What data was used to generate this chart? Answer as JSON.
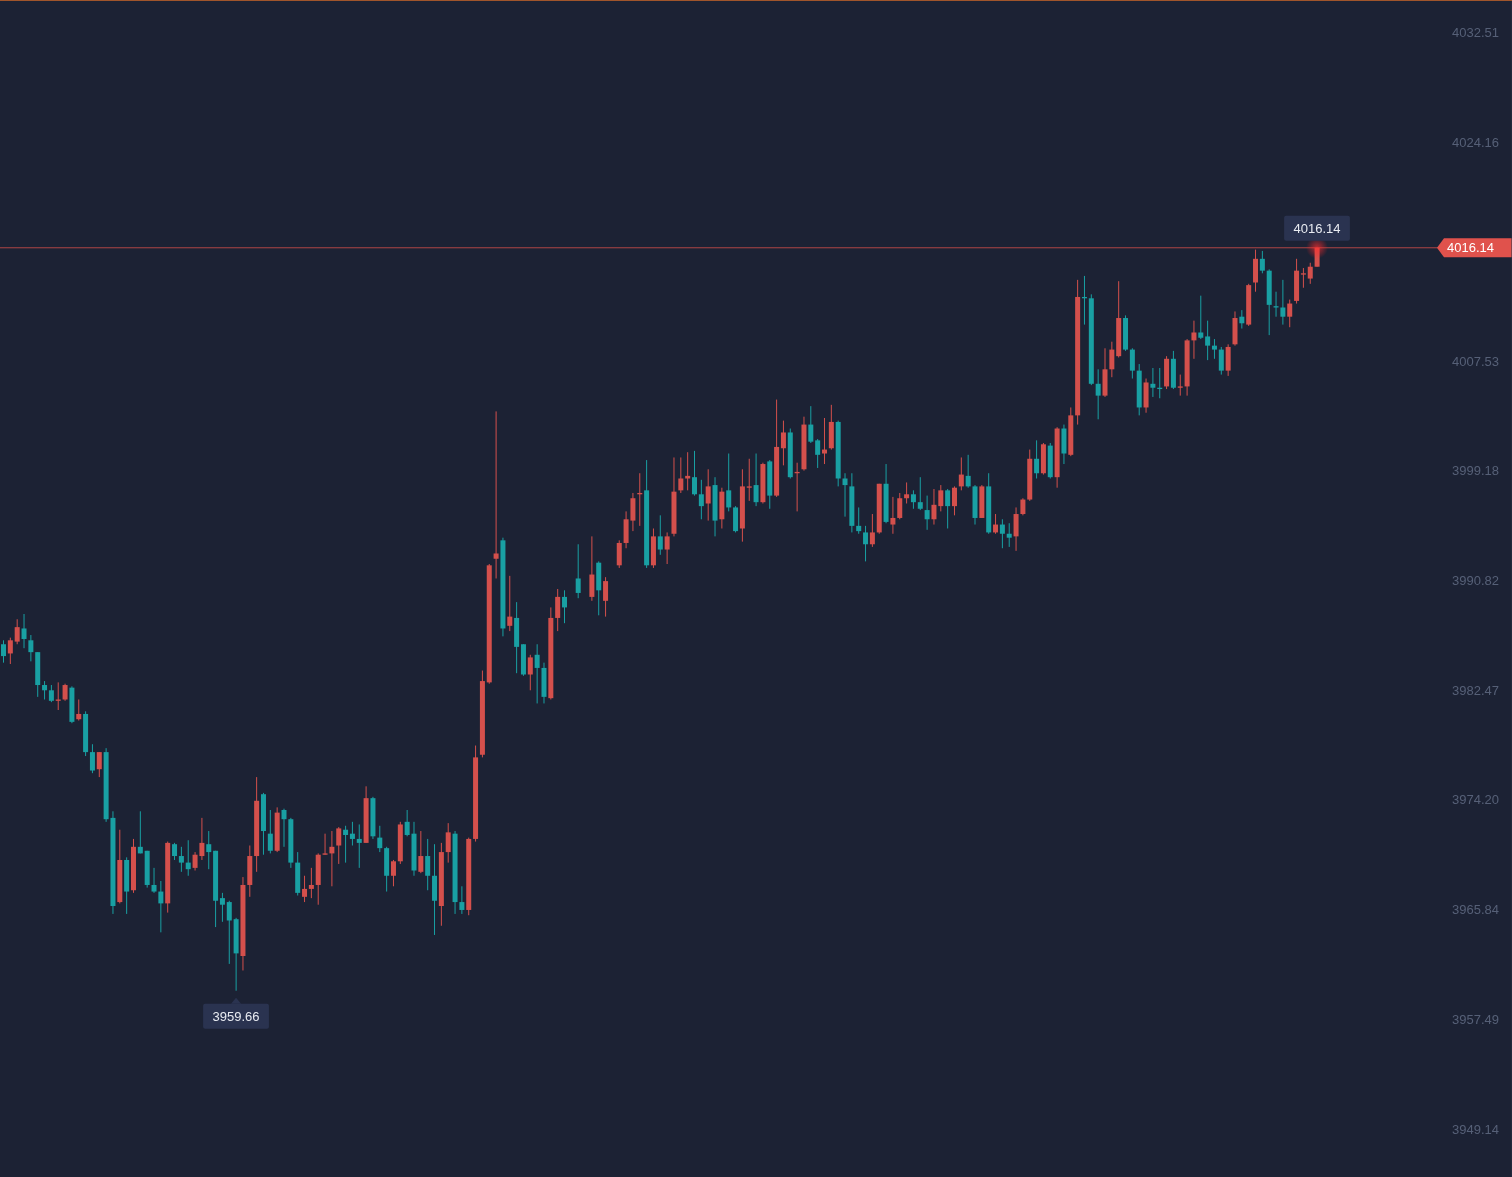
{
  "chart_data": {
    "type": "candlestick",
    "categories": [
      null,
      null,
      null,
      null,
      null,
      null,
      null,
      null,
      null,
      null,
      null,
      null,
      null,
      null,
      null,
      null,
      null,
      null,
      null,
      null,
      null,
      null,
      null,
      null,
      null,
      null,
      null,
      null,
      null,
      null,
      null,
      null,
      null,
      null,
      null,
      null,
      null,
      null,
      null,
      null,
      null,
      null,
      null,
      null,
      null,
      null,
      null,
      null,
      null,
      null,
      null,
      null,
      null,
      null,
      null,
      null,
      null,
      null,
      null,
      null,
      null,
      null,
      null,
      null,
      null,
      null,
      null,
      null,
      null,
      null,
      null,
      null,
      null,
      null,
      null,
      null,
      null,
      null,
      null,
      null,
      null,
      null,
      null,
      null,
      null,
      null,
      null,
      null,
      null,
      null,
      null,
      null,
      null,
      null,
      null,
      null,
      null,
      null,
      null,
      null,
      null,
      null,
      null,
      null,
      null,
      null,
      null,
      null,
      null,
      null,
      null,
      null,
      null,
      null,
      null,
      null,
      null,
      null,
      null,
      null,
      null,
      null,
      null,
      null,
      null,
      null,
      null,
      null,
      null,
      null,
      null,
      null,
      null,
      null,
      null,
      null,
      null,
      null,
      null,
      null,
      null,
      null,
      null,
      null,
      null,
      null,
      null,
      null,
      null,
      null,
      null,
      null,
      null,
      null,
      null,
      null,
      null,
      null,
      null,
      null,
      null,
      null,
      null,
      null,
      null,
      null,
      null,
      null,
      null,
      null,
      null,
      null,
      null,
      null,
      null,
      null,
      null,
      null,
      null,
      null,
      null,
      null,
      null,
      null,
      null,
      null,
      null,
      null,
      null,
      null,
      null,
      null,
      null,
      null,
      null,
      null,
      null,
      null,
      null,
      null,
      null,
      null,
      null,
      null,
      null,
      null,
      null,
      null,
      null,
      null,
      null,
      null,
      null,
      null,
      null,
      null,
      null,
      null,
      null,
      null,
      null
    ],
    "ohlc": [
      [
        3986.0,
        3986.3,
        3984.6,
        3985.1
      ],
      [
        3985.3,
        3986.5,
        3984.5,
        3986.3
      ],
      [
        3986.2,
        3987.9,
        3986.0,
        3987.3
      ],
      [
        3987.2,
        3988.3,
        3985.7,
        3986.4
      ],
      [
        3986.3,
        3986.7,
        3984.7,
        3985.4
      ],
      [
        3985.4,
        3985.4,
        3982.0,
        3982.9
      ],
      [
        3982.9,
        3983.2,
        3981.8,
        3982.5
      ],
      [
        3982.5,
        3982.9,
        3981.6,
        3981.7
      ],
      [
        3981.7,
        3983.1,
        3981.0,
        3981.8
      ],
      [
        3981.8,
        3983.0,
        3981.7,
        3982.9
      ],
      [
        3982.7,
        3982.8,
        3980.0,
        3980.1
      ],
      [
        3980.3,
        3981.8,
        3980.2,
        3980.7
      ],
      [
        3980.7,
        3980.9,
        3977.5,
        3977.8
      ],
      [
        3977.8,
        3978.4,
        3976.2,
        3976.4
      ],
      [
        3976.5,
        3977.8,
        3975.9,
        3977.8
      ],
      [
        3977.8,
        3978.1,
        3972.5,
        3972.7
      ],
      [
        3972.8,
        3973.3,
        3965.5,
        3966.1
      ],
      [
        3966.4,
        3971.9,
        3966.3,
        3969.6
      ],
      [
        3969.6,
        3969.8,
        3965.5,
        3967.2
      ],
      [
        3967.3,
        3971.2,
        3967.1,
        3970.6
      ],
      [
        3970.6,
        3973.3,
        3970.1,
        3970.1
      ],
      [
        3970.3,
        3970.3,
        3967.5,
        3967.7
      ],
      [
        3967.7,
        3969.0,
        3967.1,
        3967.2
      ],
      [
        3967.2,
        3968.0,
        3964.1,
        3966.3
      ],
      [
        3966.3,
        3971.0,
        3965.6,
        3970.9
      ],
      [
        3970.8,
        3970.9,
        3969.6,
        3969.9
      ],
      [
        3969.9,
        3970.6,
        3968.7,
        3969.4
      ],
      [
        3969.4,
        3971.1,
        3968.4,
        3968.9
      ],
      [
        3969.0,
        3970.2,
        3968.8,
        3970.0
      ],
      [
        3969.9,
        3972.8,
        3969.6,
        3970.9
      ],
      [
        3970.8,
        3971.8,
        3968.9,
        3970.2
      ],
      [
        3970.3,
        3970.3,
        3964.5,
        3966.5
      ],
      [
        3966.7,
        3967.1,
        3964.9,
        3966.2
      ],
      [
        3966.4,
        3966.5,
        3961.7,
        3965.0
      ],
      [
        3965.1,
        3965.2,
        3959.66,
        3962.5
      ],
      [
        3962.3,
        3968.3,
        3961.2,
        3967.7
      ],
      [
        3967.7,
        3970.7,
        3966.8,
        3969.9
      ],
      [
        3969.9,
        3975.9,
        3968.7,
        3974.1
      ],
      [
        3974.6,
        3974.7,
        3970.0,
        3971.8
      ],
      [
        3971.6,
        3973.4,
        3970.1,
        3970.3
      ],
      [
        3970.3,
        3973.6,
        3970.2,
        3973.2
      ],
      [
        3973.4,
        3973.5,
        3970.6,
        3972.7
      ],
      [
        3972.7,
        3972.8,
        3969.0,
        3969.4
      ],
      [
        3969.4,
        3970.2,
        3966.9,
        3967.1
      ],
      [
        3966.8,
        3968.4,
        3966.4,
        3967.4
      ],
      [
        3967.4,
        3969.0,
        3966.7,
        3967.7
      ],
      [
        3967.7,
        3970.1,
        3966.2,
        3970.0
      ],
      [
        3970.0,
        3971.6,
        3970.0,
        3970.1
      ],
      [
        3970.1,
        3971.8,
        3967.6,
        3970.6
      ],
      [
        3970.7,
        3972.1,
        3969.3,
        3972.0
      ],
      [
        3971.9,
        3972.2,
        3969.4,
        3971.5
      ],
      [
        3971.6,
        3972.5,
        3970.7,
        3971.2
      ],
      [
        3971.2,
        3972.3,
        3969.0,
        3970.9
      ],
      [
        3970.9,
        3975.2,
        3970.9,
        3974.3
      ],
      [
        3974.3,
        3974.4,
        3971.2,
        3971.4
      ],
      [
        3971.3,
        3972.2,
        3970.2,
        3970.5
      ],
      [
        3970.5,
        3970.6,
        3967.2,
        3968.4
      ],
      [
        3968.4,
        3969.6,
        3967.6,
        3969.5
      ],
      [
        3969.5,
        3972.5,
        3969.3,
        3972.3
      ],
      [
        3972.5,
        3973.4,
        3971.4,
        3971.5
      ],
      [
        3971.6,
        3972.5,
        3968.4,
        3968.8
      ],
      [
        3968.7,
        3971.8,
        3968.6,
        3969.9
      ],
      [
        3969.9,
        3971.2,
        3967.3,
        3968.4
      ],
      [
        3968.4,
        3970.8,
        3963.9,
        3966.5
      ],
      [
        3966.1,
        3970.9,
        3964.6,
        3970.2
      ],
      [
        3970.2,
        3972.4,
        3969.4,
        3971.7
      ],
      [
        3971.6,
        3971.8,
        3965.5,
        3966.4
      ],
      [
        3966.4,
        3967.6,
        3965.5,
        3965.8
      ],
      [
        3965.8,
        3971.3,
        3965.4,
        3971.2
      ],
      [
        3971.2,
        3978.3,
        3971.0,
        3977.4
      ],
      [
        3977.6,
        3984.0,
        3977.4,
        3983.2
      ],
      [
        3983.1,
        3992.1,
        3983.0,
        3992.0
      ],
      [
        3992.5,
        4003.7,
        3991.0,
        3992.9
      ],
      [
        3993.9,
        3994.1,
        3986.6,
        3987.2
      ],
      [
        3987.4,
        3991.2,
        3987.0,
        3988.1
      ],
      [
        3988.0,
        3989.2,
        3983.8,
        3985.8
      ],
      [
        3986.0,
        3986.0,
        3983.6,
        3983.7
      ],
      [
        3983.7,
        3985.2,
        3982.5,
        3985.0
      ],
      [
        3985.2,
        3986.0,
        3981.5,
        3984.2
      ],
      [
        3984.2,
        3984.6,
        3981.5,
        3982.0
      ],
      [
        3981.9,
        3988.8,
        3981.8,
        3988.0
      ],
      [
        3988.0,
        3990.2,
        3987.0,
        3989.6
      ],
      [
        3989.6,
        3990.1,
        3987.6,
        3988.8
      ],
      null,
      [
        3991.0,
        3993.6,
        3989.5,
        3989.9
      ],
      null,
      [
        3989.6,
        3994.2,
        3989.3,
        3991.3
      ],
      [
        3992.2,
        3992.3,
        3988.2,
        3990.1
      ],
      [
        3989.3,
        3991.1,
        3988.1,
        3990.8
      ],
      null,
      [
        3992.0,
        3993.9,
        3991.8,
        3993.7
      ],
      [
        3993.7,
        3996.1,
        3993.3,
        3995.5
      ],
      [
        3995.4,
        3997.5,
        3994.6,
        3997.1
      ],
      [
        3997.4,
        3999.0,
        3995.0,
        3997.5
      ],
      [
        3997.7,
        4000.0,
        3991.8,
        3992.0
      ],
      [
        3992.0,
        3994.8,
        3991.8,
        3994.2
      ],
      [
        3994.2,
        3995.8,
        3992.8,
        3993.2
      ],
      [
        3993.2,
        3994.5,
        3992.1,
        3994.2
      ],
      [
        3994.4,
        4000.2,
        3994.2,
        3997.6
      ],
      [
        3997.7,
        4000.2,
        3997.5,
        3998.6
      ],
      [
        3998.6,
        4000.6,
        3997.7,
        3998.8
      ],
      [
        3998.7,
        4000.7,
        3997.3,
        3997.4
      ],
      [
        3997.4,
        3998.5,
        3995.5,
        3996.5
      ],
      [
        3996.7,
        3999.3,
        3995.4,
        3998.0
      ],
      [
        3998.1,
        3998.7,
        3994.2,
        3995.4
      ],
      [
        3995.5,
        3997.9,
        3994.8,
        3997.6
      ],
      [
        3997.7,
        4000.5,
        3996.1,
        3996.4
      ],
      [
        3996.4,
        3996.5,
        3994.5,
        3994.6
      ],
      [
        3994.8,
        3999.3,
        3993.8,
        3998.0
      ],
      [
        3997.9,
        4000.1,
        3996.9,
        3998.0
      ],
      [
        3998.1,
        4000.5,
        3996.5,
        3996.8
      ],
      [
        3996.8,
        3999.8,
        3996.7,
        3999.7
      ],
      [
        3999.9,
        4000.0,
        3996.3,
        3997.3
      ],
      [
        3997.3,
        4004.6,
        3997.2,
        4001.0
      ],
      [
        4000.9,
        4003.0,
        3999.6,
        4002.1
      ],
      [
        4002.1,
        4002.4,
        3998.6,
        3998.7
      ],
      [
        3999.0,
        3999.8,
        3996.1,
        3999.1
      ],
      [
        3999.3,
        4003.3,
        3999.2,
        4002.7
      ],
      [
        4002.7,
        4004.1,
        4001.3,
        4001.4
      ],
      [
        4001.5,
        4001.6,
        3999.4,
        4000.4
      ],
      [
        4000.5,
        4003.2,
        3999.7,
        4000.8
      ],
      [
        4000.9,
        4004.2,
        4000.8,
        4002.9
      ],
      [
        4002.9,
        4003.0,
        3998.0,
        3998.6
      ],
      [
        3998.6,
        3999.0,
        3995.7,
        3998.1
      ],
      [
        3998.0,
        3999.0,
        3994.5,
        3995.0
      ],
      [
        3995.0,
        3996.4,
        3994.4,
        3994.6
      ],
      [
        3994.5,
        3995.0,
        3992.3,
        3993.6
      ],
      [
        3993.6,
        3995.9,
        3993.4,
        3994.5
      ],
      [
        3994.5,
        3998.2,
        3994.4,
        3998.2
      ],
      [
        3998.2,
        3999.7,
        3995.2,
        3995.3
      ],
      [
        3995.1,
        3997.2,
        3994.4,
        3995.6
      ],
      [
        3995.6,
        3997.5,
        3995.5,
        3997.1
      ],
      [
        3997.1,
        3998.3,
        3996.7,
        3997.4
      ],
      [
        3997.4,
        3997.7,
        3996.3,
        3996.8
      ],
      [
        3996.8,
        3998.7,
        3996.2,
        3996.3
      ],
      [
        3996.2,
        3997.3,
        3994.7,
        3995.5
      ],
      [
        3995.5,
        3997.8,
        3995.1,
        3996.6
      ],
      [
        3996.5,
        3998.1,
        3996.1,
        3997.7
      ],
      [
        3997.7,
        3997.8,
        3994.8,
        3996.5
      ],
      [
        3996.5,
        3998.0,
        3995.8,
        3997.9
      ],
      [
        3998.0,
        4000.2,
        3997.7,
        3998.9
      ],
      [
        3998.8,
        4000.4,
        3997.9,
        3998.0
      ],
      [
        3998.0,
        3998.1,
        3995.1,
        3995.6
      ],
      [
        3995.6,
        3998.1,
        3995.6,
        3998.0
      ],
      [
        3998.0,
        3999.0,
        3994.4,
        3994.5
      ],
      [
        3994.5,
        3995.9,
        3994.4,
        3995.1
      ],
      [
        3995.1,
        3995.5,
        3993.3,
        3994.4
      ],
      [
        3994.4,
        3995.2,
        3993.4,
        3994.1
      ],
      [
        3994.2,
        3996.4,
        3993.1,
        3995.9
      ],
      [
        3995.9,
        3997.1,
        3995.8,
        3997.0
      ],
      [
        3997.0,
        4000.8,
        3996.9,
        4000.1
      ],
      [
        4000.1,
        4001.5,
        3998.6,
        3999.0
      ],
      [
        3999.0,
        4001.3,
        3998.9,
        4001.2
      ],
      [
        4001.1,
        4001.3,
        3998.6,
        3998.7
      ],
      [
        3998.7,
        4002.5,
        3997.9,
        4002.4
      ],
      [
        4002.4,
        4002.7,
        3999.7,
        4000.5
      ],
      [
        4000.4,
        4004.0,
        4000.3,
        4003.4
      ],
      [
        4003.4,
        4013.7,
        4002.7,
        4012.4
      ],
      [
        4012.4,
        4014.0,
        4010.3,
        4012.3
      ],
      [
        4012.3,
        4012.6,
        4005.7,
        4005.8
      ],
      [
        4005.8,
        4006.9,
        4003.1,
        4004.9
      ],
      [
        4004.9,
        4008.5,
        4004.8,
        4006.9
      ],
      [
        4006.9,
        4009.0,
        4006.3,
        4008.4
      ],
      [
        4007.9,
        4013.6,
        4007.8,
        4010.8
      ],
      [
        4010.8,
        4011.0,
        4008.3,
        4008.4
      ],
      [
        4008.4,
        4008.5,
        4006.2,
        4006.8
      ],
      [
        4006.8,
        4007.3,
        4003.4,
        4004.0
      ],
      [
        4004.0,
        4006.2,
        4003.6,
        4005.9
      ],
      [
        4005.8,
        4007.0,
        4004.8,
        4005.5
      ],
      [
        4005.5,
        4007.0,
        4004.7,
        4005.4
      ],
      [
        4005.6,
        4007.9,
        4005.4,
        4007.7
      ],
      [
        4007.7,
        4008.3,
        4005.4,
        4005.5
      ],
      [
        4005.5,
        4006.5,
        4004.9,
        4005.6
      ],
      [
        4005.6,
        4009.2,
        4004.9,
        4009.1
      ],
      [
        4009.1,
        4010.6,
        4007.7,
        4009.7
      ],
      [
        4009.7,
        4012.5,
        4009.2,
        4009.3
      ],
      [
        4009.4,
        4010.6,
        4007.6,
        4008.7
      ],
      [
        4008.7,
        4009.2,
        4007.7,
        4008.4
      ],
      [
        4008.4,
        4008.6,
        4006.5,
        4006.8
      ],
      [
        4006.8,
        4008.8,
        4006.4,
        4008.6
      ],
      [
        4008.8,
        4011.3,
        4008.7,
        4010.8
      ],
      [
        4010.9,
        4011.4,
        4010.0,
        4010.4
      ],
      [
        4010.3,
        4013.4,
        4010.2,
        4013.3
      ],
      [
        4013.5,
        4016.0,
        4012.8,
        4015.3
      ],
      [
        4015.3,
        4015.9,
        4014.2,
        4014.4
      ],
      [
        4014.4,
        4014.5,
        4009.5,
        4011.8
      ],
      [
        4011.7,
        4012.8,
        4010.9,
        4011.6
      ],
      [
        4011.6,
        4013.7,
        4010.3,
        4010.9
      ],
      [
        4010.9,
        4012.2,
        4010.1,
        4011.9
      ],
      [
        4012.1,
        4015.3,
        4011.9,
        4014.4
      ],
      [
        4014.1,
        4014.6,
        4013.1,
        4014.2
      ],
      [
        4013.8,
        4015.0,
        4013.4,
        4014.7
      ],
      [
        4014.7,
        4016.14,
        4014.7,
        4016.14
      ],
      null,
      null,
      null,
      null,
      null,
      null,
      null,
      null,
      null,
      null,
      null,
      null,
      null,
      null,
      null,
      null,
      null,
      null,
      null,
      null,
      null,
      null,
      null,
      null,
      null,
      null,
      null,
      null
    ],
    "colors": [
      "#19a0a3",
      "#d4504c",
      "#d4504c",
      "#19a0a3",
      "#19a0a3",
      "#19a0a3",
      "#19a0a3",
      "#19a0a3",
      "#d4504c",
      "#d4504c",
      "#19a0a3",
      "#d4504c",
      "#19a0a3",
      "#19a0a3",
      "#d4504c",
      "#19a0a3",
      "#19a0a3",
      "#d4504c",
      "#19a0a3",
      "#d4504c",
      "#19a0a3",
      "#19a0a3",
      "#19a0a3",
      "#19a0a3",
      "#d4504c",
      "#19a0a3",
      "#19a0a3",
      "#19a0a3",
      "#d4504c",
      "#d4504c",
      "#19a0a3",
      "#19a0a3",
      "#19a0a3",
      "#19a0a3",
      "#19a0a3",
      "#d4504c",
      "#d4504c",
      "#d4504c",
      "#19a0a3",
      "#19a0a3",
      "#d4504c",
      "#19a0a3",
      "#19a0a3",
      "#19a0a3",
      "#d4504c",
      "#d4504c",
      "#d4504c",
      "#d4504c",
      "#d4504c",
      "#d4504c",
      "#19a0a3",
      "#19a0a3",
      "#19a0a3",
      "#d4504c",
      "#19a0a3",
      "#19a0a3",
      "#19a0a3",
      "#d4504c",
      "#d4504c",
      "#19a0a3",
      "#19a0a3",
      "#d4504c",
      "#19a0a3",
      "#19a0a3",
      "#d4504c",
      "#d4504c",
      "#19a0a3",
      "#19a0a3",
      "#d4504c",
      "#d4504c",
      "#d4504c",
      "#d4504c",
      "#d4504c",
      "#19a0a3",
      "#d4504c",
      "#19a0a3",
      "#19a0a3",
      "#d4504c",
      "#19a0a3",
      "#19a0a3",
      "#d4504c",
      "#d4504c",
      "#19a0a3",
      null,
      "#19a0a3",
      null,
      "#d4504c",
      "#19a0a3",
      "#d4504c",
      null,
      "#d4504c",
      "#d4504c",
      "#d4504c",
      "#d4504c",
      "#19a0a3",
      "#d4504c",
      "#19a0a3",
      "#d4504c",
      "#d4504c",
      "#d4504c",
      "#d4504c",
      "#19a0a3",
      "#19a0a3",
      "#d4504c",
      "#19a0a3",
      "#d4504c",
      "#19a0a3",
      "#19a0a3",
      "#d4504c",
      "#d4504c",
      "#19a0a3",
      "#d4504c",
      "#19a0a3",
      "#d4504c",
      "#d4504c",
      "#19a0a3",
      "#d4504c",
      "#d4504c",
      "#19a0a3",
      "#19a0a3",
      "#d4504c",
      "#d4504c",
      "#19a0a3",
      "#19a0a3",
      "#19a0a3",
      "#19a0a3",
      "#19a0a3",
      "#d4504c",
      "#d4504c",
      "#19a0a3",
      "#d4504c",
      "#d4504c",
      "#d4504c",
      "#19a0a3",
      "#19a0a3",
      "#19a0a3",
      "#d4504c",
      "#d4504c",
      "#19a0a3",
      "#d4504c",
      "#d4504c",
      "#19a0a3",
      "#19a0a3",
      "#d4504c",
      "#19a0a3",
      "#d4504c",
      "#19a0a3",
      "#19a0a3",
      "#d4504c",
      "#d4504c",
      "#d4504c",
      "#19a0a3",
      "#d4504c",
      "#19a0a3",
      "#d4504c",
      "#19a0a3",
      "#d4504c",
      "#d4504c",
      "#19a0a3",
      "#19a0a3",
      "#19a0a3",
      "#d4504c",
      "#d4504c",
      "#d4504c",
      "#19a0a3",
      "#19a0a3",
      "#19a0a3",
      "#d4504c",
      "#19a0a3",
      "#19a0a3",
      "#d4504c",
      "#19a0a3",
      "#d4504c",
      "#d4504c",
      "#d4504c",
      "#19a0a3",
      "#19a0a3",
      "#19a0a3",
      "#19a0a3",
      "#d4504c",
      "#d4504c",
      "#19a0a3",
      "#d4504c",
      "#d4504c",
      "#19a0a3",
      "#19a0a3",
      "#19a0a3",
      "#19a0a3",
      "#d4504c",
      "#d4504c",
      "#d4504c",
      "#d4504c",
      "#d4504c",
      null,
      null,
      null,
      null,
      null,
      null,
      null,
      null,
      null,
      null,
      null,
      null,
      null,
      null,
      null,
      null,
      null,
      null,
      null,
      null,
      null,
      null,
      null,
      null,
      null,
      null,
      null,
      null
    ],
    "ylim": [
      3945.5,
      4034.9
    ],
    "yticks": [
      4032.51,
      4024.16,
      4007.53,
      3999.18,
      3990.82,
      3982.47,
      {
        "value": 3974.2,
        "label": "3974.20"
      },
      3965.84,
      3957.49,
      3949.14
    ],
    "tick_labels": "y",
    "ref_lines": [
      {
        "axis": "y",
        "value": 4016.14,
        "label": "4016.14",
        "color": "#e0524c"
      }
    ],
    "annotations": [
      {
        "text": "4016.14",
        "y": 4016.14
      },
      {
        "text": "3959.66",
        "y": 3959.66
      }
    ]
  }
}
